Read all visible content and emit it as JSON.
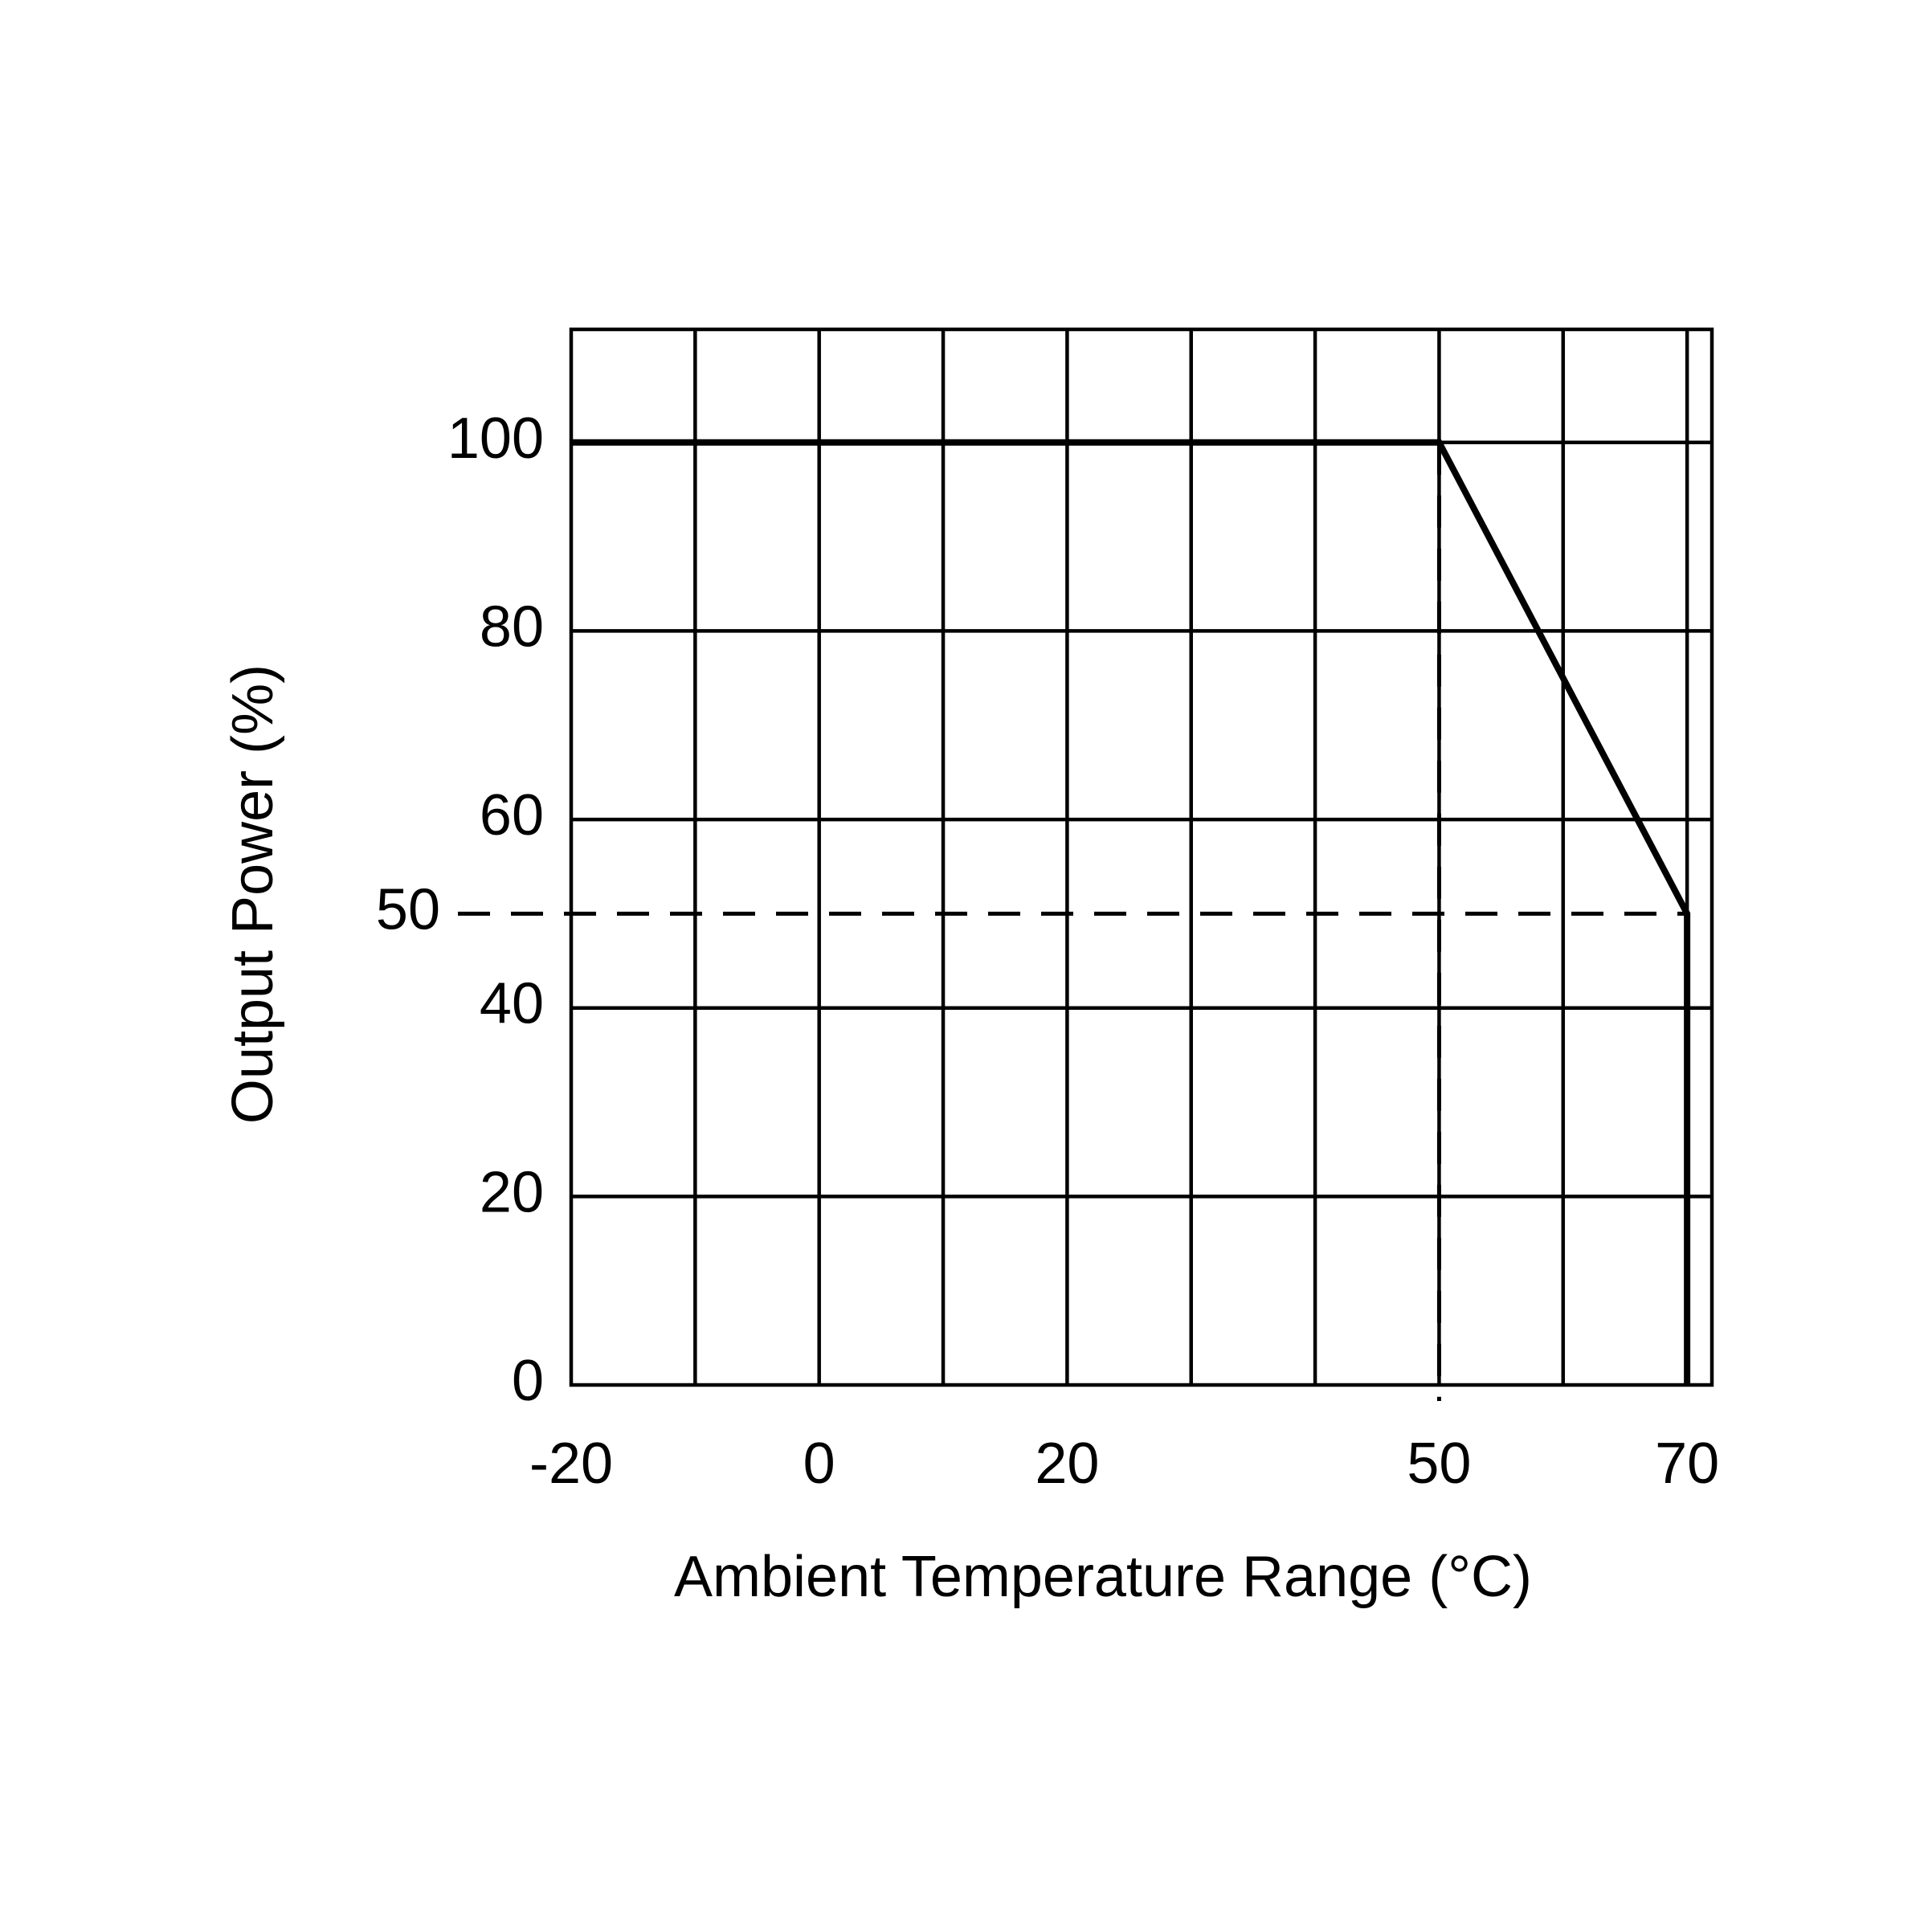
{
  "chart_data": {
    "type": "line",
    "x_label": "Ambient Temperature Range (°C)",
    "y_label": "Output Power (%)",
    "x": [
      -20,
      50,
      70,
      70
    ],
    "series": [
      {
        "values": [
          100,
          100,
          50,
          0
        ],
        "color": "#000000"
      }
    ],
    "xlim": [
      -20,
      72
    ],
    "ylim": [
      0,
      112
    ],
    "xticks": [
      -20,
      0,
      20,
      50,
      70
    ],
    "yticks": [
      0,
      20,
      40,
      50,
      60,
      80,
      100
    ],
    "xgrid": [
      -10,
      0,
      10,
      20,
      30,
      40,
      50,
      60,
      70
    ],
    "ygrid": [
      20,
      40,
      60,
      80,
      100
    ],
    "guides": {
      "x": [
        50
      ],
      "y": [
        50
      ]
    },
    "grid": true
  }
}
